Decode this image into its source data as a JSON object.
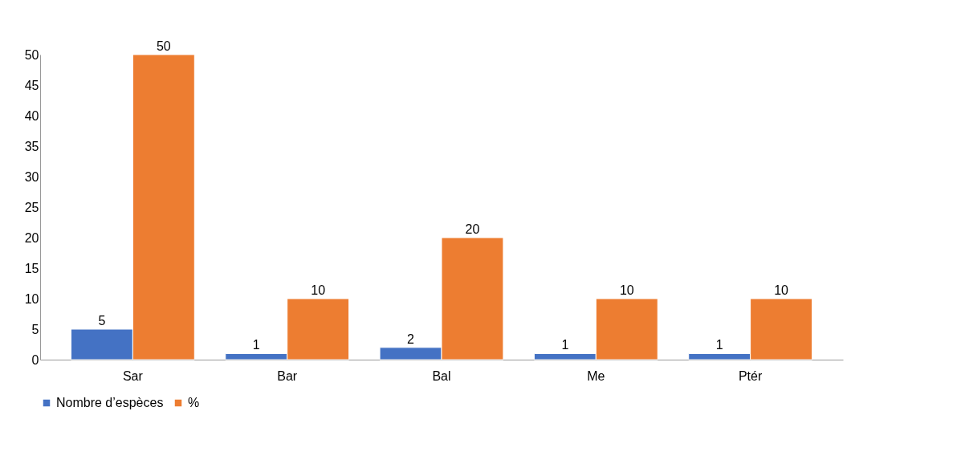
{
  "chart_data": {
    "type": "bar",
    "categories": [
      "Sar",
      "Bar",
      "Bal",
      "Me",
      "Ptér"
    ],
    "series": [
      {
        "name": "Nombre d’espèces",
        "color": "#4472c4",
        "values": [
          5,
          1,
          2,
          1,
          1
        ]
      },
      {
        "name": "%",
        "color": "#ed7d31",
        "values": [
          50,
          10,
          20,
          10,
          10
        ]
      }
    ],
    "ylim": [
      0,
      50
    ],
    "yticks": [
      0,
      5,
      10,
      15,
      20,
      25,
      30,
      35,
      40,
      45,
      50
    ],
    "data_labels": true,
    "grid": false,
    "legend": "bottom"
  }
}
